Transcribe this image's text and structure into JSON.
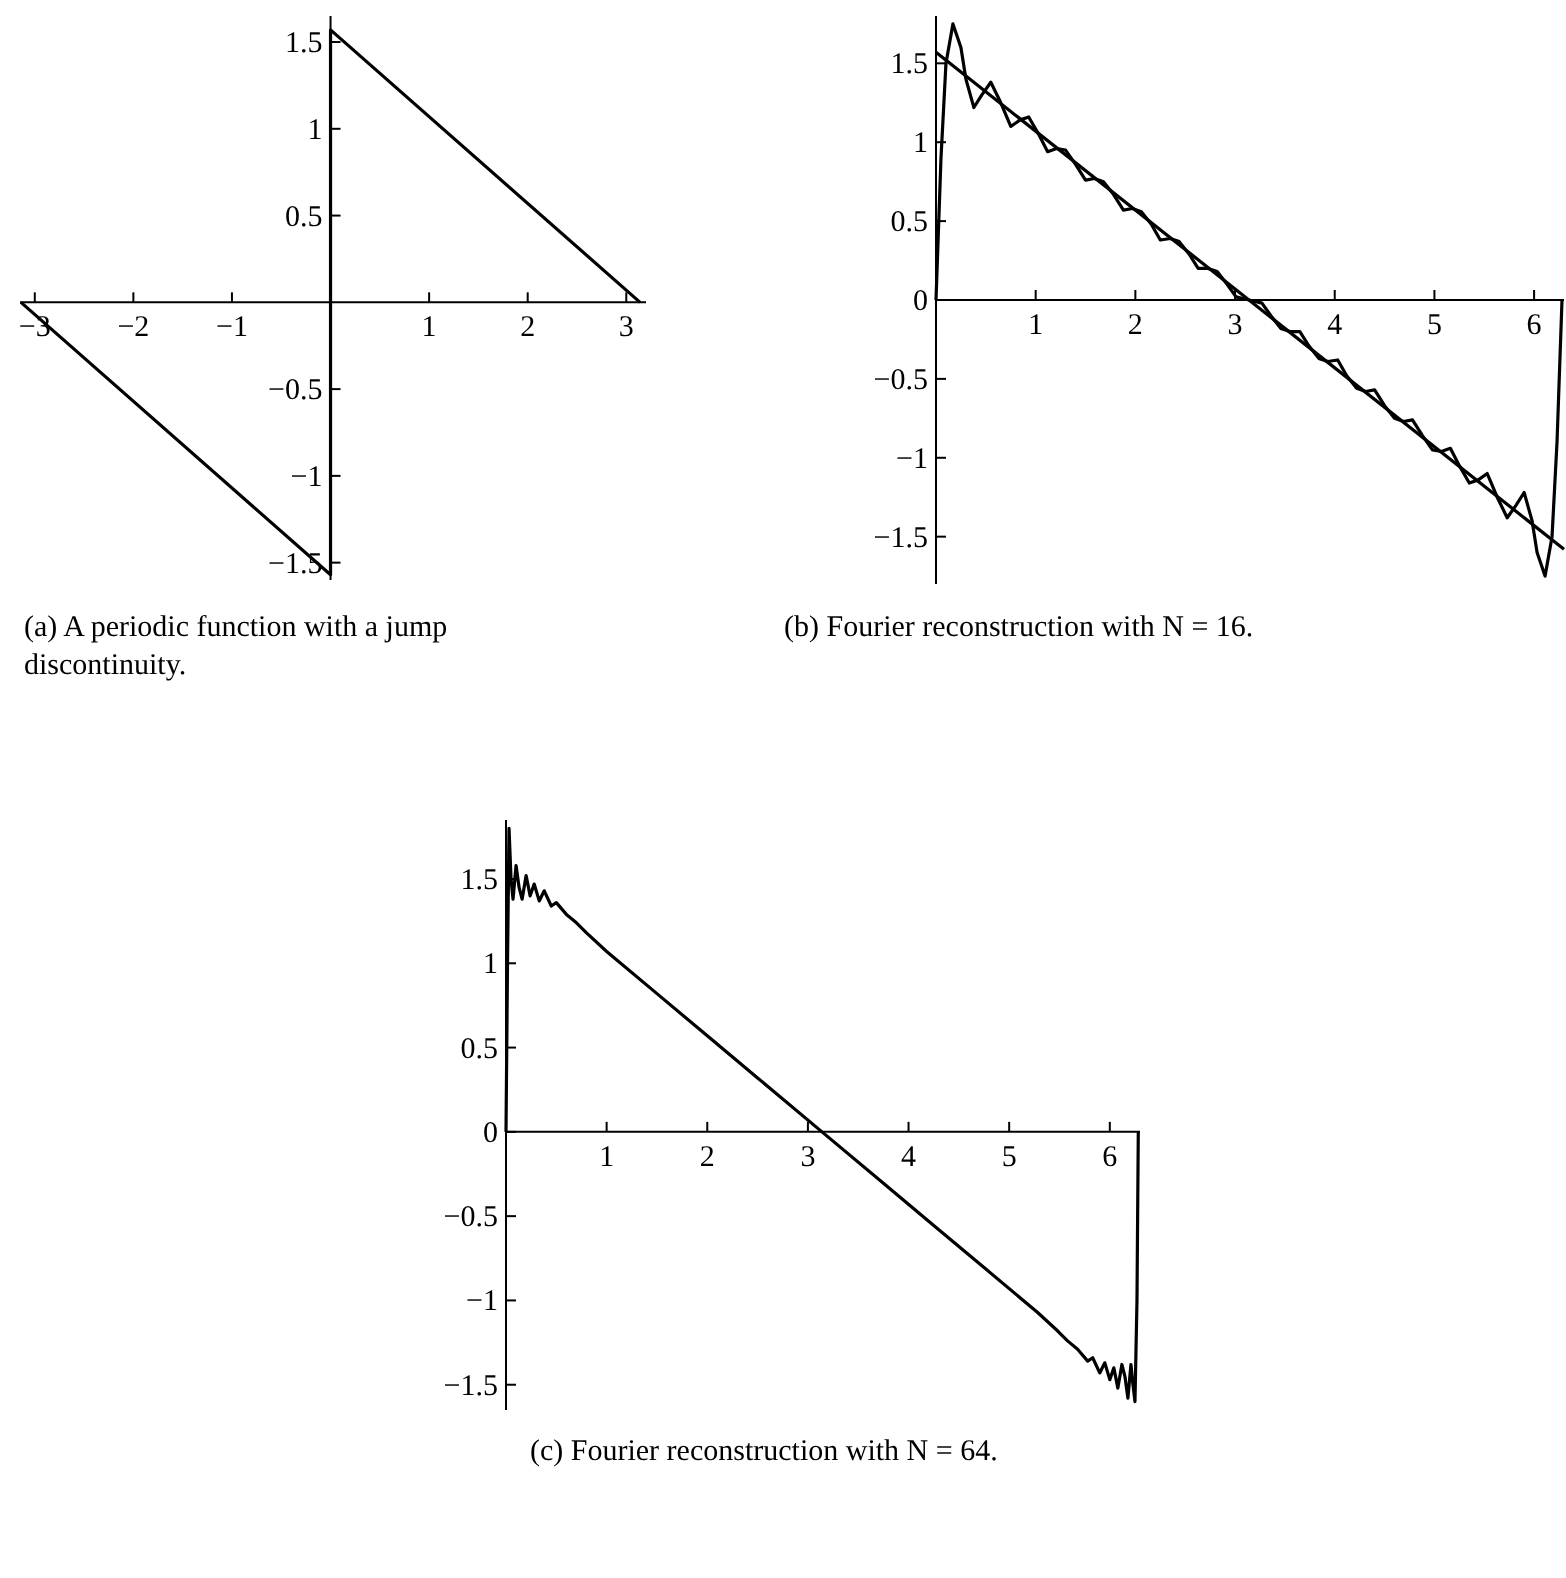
{
  "chart_data": [
    {
      "type": "line",
      "title": "(a) A periodic function with a jump discontinuity.",
      "xlim": [
        -3.15,
        3.2
      ],
      "ylim": [
        -1.6,
        1.65
      ],
      "xticks": [
        {
          "value": -3,
          "label": "−3"
        },
        {
          "value": -2,
          "label": "−2"
        },
        {
          "value": -1,
          "label": "−1"
        },
        1,
        2,
        3
      ],
      "yticks": [
        1.5,
        1,
        0.5,
        {
          "value": -0.5,
          "label": "−0.5"
        },
        {
          "value": -1,
          "label": "−1"
        },
        {
          "value": -1.5,
          "label": "−1.5"
        }
      ],
      "series": [
        {
          "color": "#000000",
          "x": [
            -3.14,
            0,
            0,
            3.14
          ],
          "values": [
            0,
            -1.57,
            1.57,
            0
          ]
        }
      ]
    },
    {
      "type": "line",
      "title": "(b) Fourier reconstruction with N = 16.",
      "xlim": [
        0,
        6.3
      ],
      "ylim": [
        -1.8,
        1.8
      ],
      "xticks": [
        1,
        2,
        3,
        4,
        5,
        6
      ],
      "yticks": [
        1.5,
        1,
        0.5,
        0,
        {
          "value": -0.5,
          "label": "−0.5"
        },
        {
          "value": -1,
          "label": "−1"
        },
        {
          "value": -1.5,
          "label": "−1.5"
        }
      ],
      "series": [
        {
          "color": "#000000",
          "x": [
            0,
            6.3
          ],
          "values": [
            1.57,
            -1.58
          ]
        },
        {
          "color": "#000000",
          "x": [
            0,
            0.05,
            0.1,
            0.17,
            0.25,
            0.3,
            0.38,
            0.46,
            0.55,
            0.65,
            0.75,
            0.84,
            0.93,
            1.03,
            1.12,
            1.21,
            1.3,
            1.4,
            1.5,
            1.59,
            1.68,
            1.78,
            1.88,
            1.97,
            2.06,
            2.16,
            2.25,
            2.35,
            2.44,
            2.54,
            2.63,
            2.73,
            2.82,
            2.92,
            3.01,
            3.14,
            3.27,
            3.36,
            3.46,
            3.55,
            3.65,
            3.74,
            3.84,
            3.93,
            4.03,
            4.12,
            4.22,
            4.31,
            4.4,
            4.5,
            4.6,
            4.69,
            4.78,
            4.88,
            4.98,
            5.07,
            5.16,
            5.25,
            5.35,
            5.44,
            5.53,
            5.63,
            5.73,
            5.82,
            5.9,
            5.98,
            6.03,
            6.11,
            6.18,
            6.23,
            6.28
          ],
          "values": [
            0,
            0.9,
            1.5,
            1.75,
            1.6,
            1.4,
            1.22,
            1.3,
            1.38,
            1.25,
            1.1,
            1.14,
            1.16,
            1.05,
            0.94,
            0.96,
            0.95,
            0.86,
            0.76,
            0.77,
            0.75,
            0.67,
            0.57,
            0.58,
            0.56,
            0.48,
            0.38,
            0.39,
            0.37,
            0.29,
            0.2,
            0.2,
            0.18,
            0.1,
            0.02,
            0,
            -0.02,
            -0.1,
            -0.18,
            -0.2,
            -0.2,
            -0.29,
            -0.37,
            -0.39,
            -0.38,
            -0.48,
            -0.56,
            -0.58,
            -0.57,
            -0.67,
            -0.75,
            -0.77,
            -0.76,
            -0.86,
            -0.95,
            -0.96,
            -0.94,
            -1.05,
            -1.16,
            -1.14,
            -1.1,
            -1.25,
            -1.38,
            -1.3,
            -1.22,
            -1.4,
            -1.6,
            -1.75,
            -1.5,
            -0.9,
            0
          ]
        }
      ]
    },
    {
      "type": "line",
      "title": "(c) Fourier reconstruction with N = 64.",
      "xlim": [
        0,
        6.3
      ],
      "ylim": [
        -1.65,
        1.85
      ],
      "xticks": [
        1,
        2,
        3,
        4,
        5,
        6
      ],
      "yticks": [
        1.5,
        1,
        0.5,
        0,
        {
          "value": -0.5,
          "label": "−0.5"
        },
        {
          "value": -1,
          "label": "−1"
        },
        {
          "value": -1.5,
          "label": "−1.5"
        }
      ],
      "series": [
        {
          "color": "#000000",
          "x": [
            0,
            0.015,
            0.03,
            0.05,
            0.07,
            0.1,
            0.13,
            0.16,
            0.2,
            0.24,
            0.28,
            0.33,
            0.38,
            0.45,
            0.5,
            0.6,
            0.7,
            0.8,
            1.0,
            1.5,
            2.0,
            2.5,
            3.14,
            3.78,
            4.28,
            4.78,
            5.28,
            5.48,
            5.58,
            5.68,
            5.78,
            5.83,
            5.9,
            5.95,
            6.0,
            6.04,
            6.08,
            6.12,
            6.15,
            6.18,
            6.21,
            6.23,
            6.25,
            6.27,
            6.283
          ],
          "values": [
            0,
            1.0,
            1.8,
            1.5,
            1.38,
            1.58,
            1.45,
            1.38,
            1.52,
            1.4,
            1.47,
            1.37,
            1.43,
            1.34,
            1.36,
            1.29,
            1.24,
            1.18,
            1.07,
            0.82,
            0.57,
            0.32,
            0,
            -0.32,
            -0.57,
            -0.82,
            -1.07,
            -1.18,
            -1.24,
            -1.29,
            -1.36,
            -1.34,
            -1.43,
            -1.37,
            -1.47,
            -1.4,
            -1.52,
            -1.38,
            -1.45,
            -1.58,
            -1.38,
            -1.5,
            -1.6,
            -1.0,
            0
          ]
        }
      ]
    }
  ]
}
